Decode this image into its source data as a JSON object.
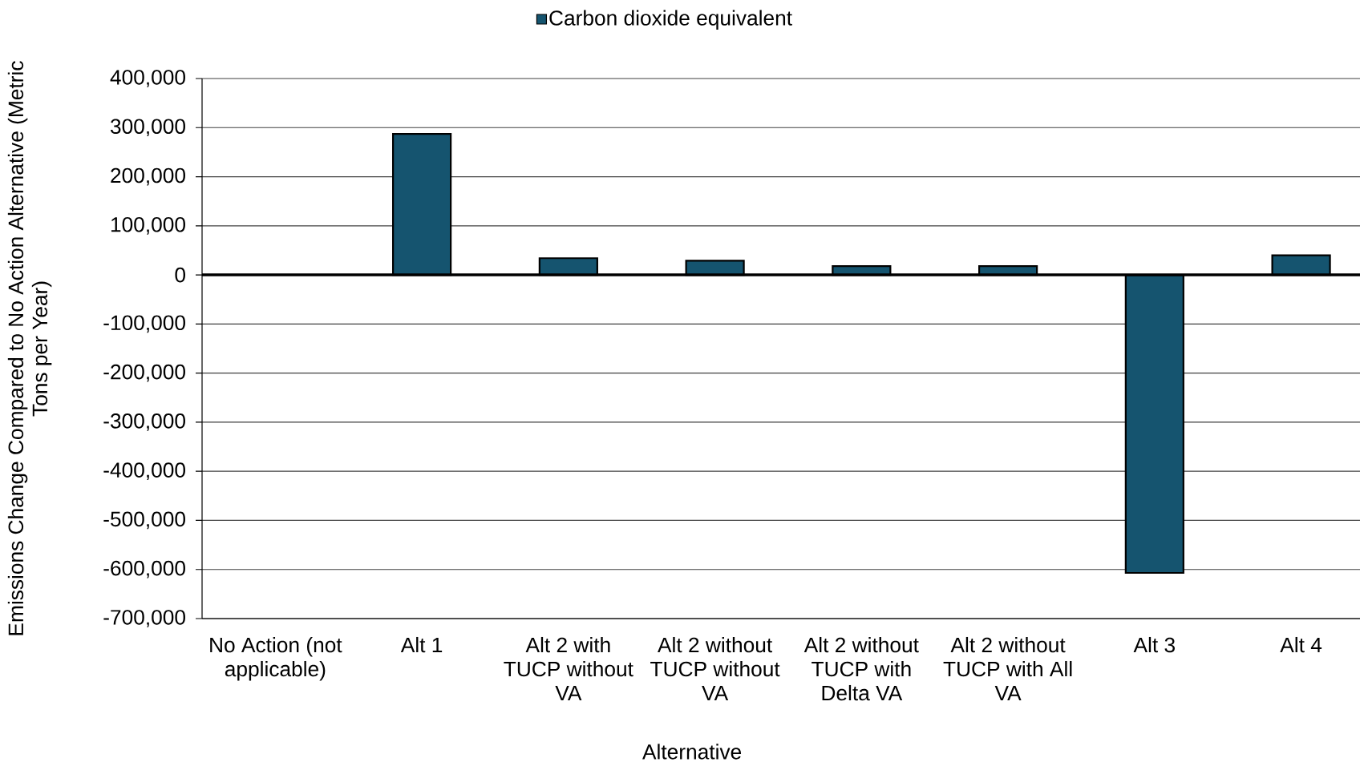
{
  "chart_data": {
    "type": "bar",
    "xlabel": "Alternative",
    "ylabel": "Emissions Change Compared to No Action Alternative (Metric Tons per Year)",
    "categories": [
      "No Action (not applicable)",
      "Alt 1",
      "Alt 2 with TUCP without VA",
      "Alt 2 without TUCP without VA",
      "Alt 2 without TUCP with Delta VA",
      "Alt 2 without TUCP with All VA",
      "Alt 3",
      "Alt 4"
    ],
    "series": [
      {
        "name": "Carbon dioxide equivalent",
        "color": "#15546F",
        "values": [
          null,
          287000,
          34000,
          29000,
          18000,
          18000,
          -607000,
          40000
        ]
      }
    ],
    "ylim": [
      -700000,
      400000
    ],
    "yticks": [
      {
        "value": -700000,
        "label": "-700,000"
      },
      {
        "value": -600000,
        "label": "-600,000"
      },
      {
        "value": -500000,
        "label": "-500,000"
      },
      {
        "value": -400000,
        "label": "-400,000"
      },
      {
        "value": -300000,
        "label": "-300,000"
      },
      {
        "value": -200000,
        "label": "-200,000"
      },
      {
        "value": -100000,
        "label": "-100,000"
      },
      0,
      {
        "value": 100000,
        "label": "100,000"
      },
      {
        "value": 200000,
        "label": "200,000"
      },
      {
        "value": 300000,
        "label": "300,000"
      },
      {
        "value": 400000,
        "label": "400,000"
      }
    ],
    "grid": "y",
    "legend": "top"
  }
}
